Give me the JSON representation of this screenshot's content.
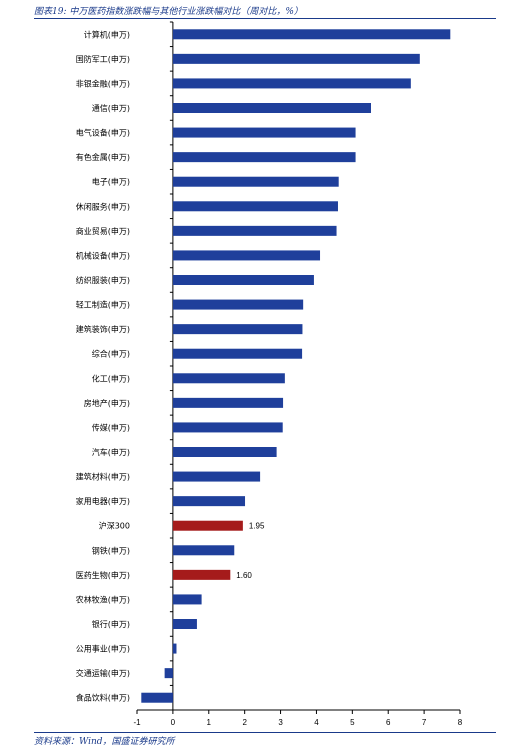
{
  "figure_title": "图表19:  中万医药指数涨跌幅与其他行业涨跌幅对比（周对比，%）",
  "source_note": "资料来源：Wind，国盛证券研究所",
  "colors": {
    "bar_default": "#1f3f9b",
    "bar_highlight": "#a51b1b",
    "axis": "#000000",
    "text_accent": "#1a3a8a"
  },
  "chart_data": {
    "type": "bar",
    "orientation": "horizontal",
    "title": "",
    "xlabel": "",
    "ylabel": "",
    "xlim": [
      -1,
      8
    ],
    "xticks": [
      -1,
      0,
      1,
      2,
      3,
      4,
      5,
      6,
      7,
      8
    ],
    "grid": false,
    "legend": "none",
    "categories": [
      "计算机(申万)",
      "国防军工(申万)",
      "非银金融(申万)",
      "通信(申万)",
      "电气设备(申万)",
      "有色金属(申万)",
      "电子(申万)",
      "休闲服务(申万)",
      "商业贸易(申万)",
      "机械设备(申万)",
      "纺织服装(申万)",
      "轻工制造(申万)",
      "建筑装饰(申万)",
      "综合(申万)",
      "化工(申万)",
      "房地产(申万)",
      "传媒(申万)",
      "汽车(申万)",
      "建筑材料(申万)",
      "家用电器(申万)",
      "沪深300",
      "钢铁(申万)",
      "医药生物(申万)",
      "农林牧渔(申万)",
      "银行(申万)",
      "公用事业(申万)",
      "交通运输(申万)",
      "食品饮料(申万)"
    ],
    "values": [
      7.73,
      6.88,
      6.63,
      5.52,
      5.09,
      5.09,
      4.62,
      4.6,
      4.56,
      4.1,
      3.93,
      3.63,
      3.61,
      3.6,
      3.12,
      3.07,
      3.06,
      2.89,
      2.43,
      2.01,
      1.95,
      1.71,
      1.6,
      0.8,
      0.67,
      0.1,
      -0.23,
      -0.88
    ],
    "highlight": [
      "沪深300",
      "医药生物(申万)"
    ],
    "data_labels": [
      {
        "category": "沪深300",
        "text": "1.95"
      },
      {
        "category": "医药生物(申万)",
        "text": "1.60"
      }
    ]
  }
}
